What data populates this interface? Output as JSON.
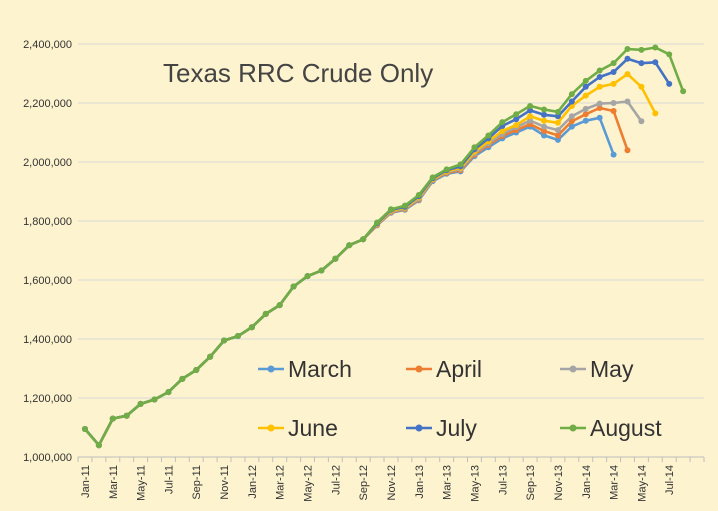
{
  "chart_data": {
    "type": "line",
    "title": "Texas RRC Crude Only",
    "xlabel": "",
    "ylabel": "",
    "ylim": [
      1000000,
      2400000
    ],
    "y_ticks": [
      "1,000,000",
      "1,200,000",
      "1,400,000",
      "1,600,000",
      "1,800,000",
      "2,000,000",
      "2,200,000",
      "2,400,000"
    ],
    "y_tick_values": [
      1000000,
      1200000,
      1400000,
      1600000,
      1800000,
      2000000,
      2200000,
      2400000
    ],
    "x_tick_labels": [
      "Jan-11",
      "Mar-11",
      "May-11",
      "Jul-11",
      "Sep-11",
      "Nov-11",
      "Jan-12",
      "Mar-12",
      "May-12",
      "Jul-12",
      "Sep-12",
      "Nov-12",
      "Jan-13",
      "Mar-13",
      "May-13",
      "Jul-13",
      "Sep-13",
      "Nov-13",
      "Jan-14",
      "Mar-14",
      "May-14",
      "Jul-14"
    ],
    "x_start_label": "Jan-11",
    "grid": "horizontal",
    "background": "#fdf3cf",
    "legend_position": "bottom-right",
    "series": [
      {
        "name": "March",
        "color": "#5b9bd5",
        "values": [
          1095000,
          1040000,
          1130000,
          1140000,
          1180000,
          1195000,
          1220000,
          1265000,
          1295000,
          1340000,
          1395000,
          1410000,
          1440000,
          1485000,
          1515000,
          1578000,
          1613000,
          1632000,
          1672000,
          1718000,
          1738000,
          1785000,
          1828000,
          1838000,
          1870000,
          1935000,
          1960000,
          1968000,
          2020000,
          2050000,
          2080000,
          2100000,
          2120000,
          2090000,
          2075000,
          2120000,
          2140000,
          2150000,
          2025000
        ]
      },
      {
        "name": "April",
        "color": "#ed7d31",
        "values": [
          1095000,
          1040000,
          1130000,
          1140000,
          1180000,
          1195000,
          1220000,
          1265000,
          1295000,
          1340000,
          1395000,
          1410000,
          1440000,
          1485000,
          1515000,
          1578000,
          1613000,
          1632000,
          1672000,
          1718000,
          1738000,
          1786000,
          1830000,
          1840000,
          1872000,
          1938000,
          1963000,
          1972000,
          2025000,
          2058000,
          2088000,
          2108000,
          2128000,
          2105000,
          2090000,
          2138000,
          2162000,
          2183000,
          2173000,
          2040000
        ]
      },
      {
        "name": "May",
        "color": "#a5a5a5",
        "values": [
          1095000,
          1040000,
          1130000,
          1140000,
          1180000,
          1195000,
          1220000,
          1265000,
          1295000,
          1340000,
          1395000,
          1410000,
          1440000,
          1485000,
          1515000,
          1578000,
          1613000,
          1632000,
          1672000,
          1718000,
          1738000,
          1788000,
          1832000,
          1842000,
          1875000,
          1940000,
          1966000,
          1976000,
          2030000,
          2063000,
          2095000,
          2118000,
          2140000,
          2120000,
          2108000,
          2155000,
          2180000,
          2198000,
          2200000,
          2205000,
          2138000
        ]
      },
      {
        "name": "June",
        "color": "#ffc000",
        "values": [
          1095000,
          1040000,
          1130000,
          1140000,
          1180000,
          1195000,
          1220000,
          1265000,
          1295000,
          1340000,
          1395000,
          1410000,
          1440000,
          1485000,
          1515000,
          1578000,
          1613000,
          1632000,
          1672000,
          1718000,
          1738000,
          1790000,
          1835000,
          1845000,
          1880000,
          1942000,
          1968000,
          1980000,
          2035000,
          2070000,
          2105000,
          2125000,
          2155000,
          2140000,
          2133000,
          2190000,
          2225000,
          2255000,
          2265000,
          2298000,
          2255000,
          2165000
        ]
      },
      {
        "name": "July",
        "color": "#4472c4",
        "values": [
          1095000,
          1040000,
          1130000,
          1140000,
          1180000,
          1195000,
          1220000,
          1265000,
          1295000,
          1340000,
          1395000,
          1410000,
          1440000,
          1485000,
          1515000,
          1578000,
          1613000,
          1632000,
          1672000,
          1718000,
          1738000,
          1792000,
          1838000,
          1848000,
          1884000,
          1945000,
          1972000,
          1985000,
          2043000,
          2080000,
          2122000,
          2145000,
          2175000,
          2160000,
          2155000,
          2205000,
          2255000,
          2288000,
          2305000,
          2350000,
          2335000,
          2338000,
          2265000
        ]
      },
      {
        "name": "August",
        "color": "#70ad47",
        "values": [
          1095000,
          1040000,
          1130000,
          1140000,
          1180000,
          1195000,
          1220000,
          1265000,
          1295000,
          1340000,
          1395000,
          1410000,
          1440000,
          1485000,
          1515000,
          1578000,
          1613000,
          1632000,
          1672000,
          1718000,
          1738000,
          1795000,
          1840000,
          1852000,
          1888000,
          1948000,
          1975000,
          1992000,
          2050000,
          2090000,
          2135000,
          2162000,
          2190000,
          2178000,
          2170000,
          2230000,
          2275000,
          2310000,
          2335000,
          2383000,
          2380000,
          2388000,
          2365000,
          2240000
        ]
      }
    ]
  }
}
